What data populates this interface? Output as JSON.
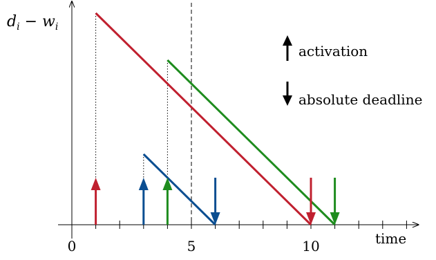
{
  "diagram": {
    "y_axis_label": {
      "var": "d",
      "sub": "i",
      "minus": " − ",
      "var2": "w",
      "sub2": "i"
    },
    "x_axis_label": "time",
    "x_axis": {
      "min": 0,
      "max": 14.5,
      "tick_step": 1
    },
    "x_tick_labels": [
      {
        "value": 0,
        "text": "0"
      },
      {
        "value": 5,
        "text": "5"
      },
      {
        "value": 10,
        "text": "10"
      }
    ],
    "dashed_marker_at": 5,
    "colors": {
      "red": "#c0202f",
      "blue": "#0b4e91",
      "green": "#1e8c1e",
      "axis": "#000000"
    },
    "tasks": [
      {
        "color_key": "red",
        "activation": 1,
        "deadline": 10,
        "start_height": 9
      },
      {
        "color_key": "blue",
        "activation": 3,
        "deadline": 6,
        "start_height": 3
      },
      {
        "color_key": "green",
        "activation": 4,
        "deadline": 11,
        "start_height": 7
      }
    ],
    "arrow_height": 2,
    "y_axis": {
      "max": 9.5
    },
    "legend": {
      "activation_label": "activation",
      "deadline_label": "absolute deadline"
    }
  }
}
